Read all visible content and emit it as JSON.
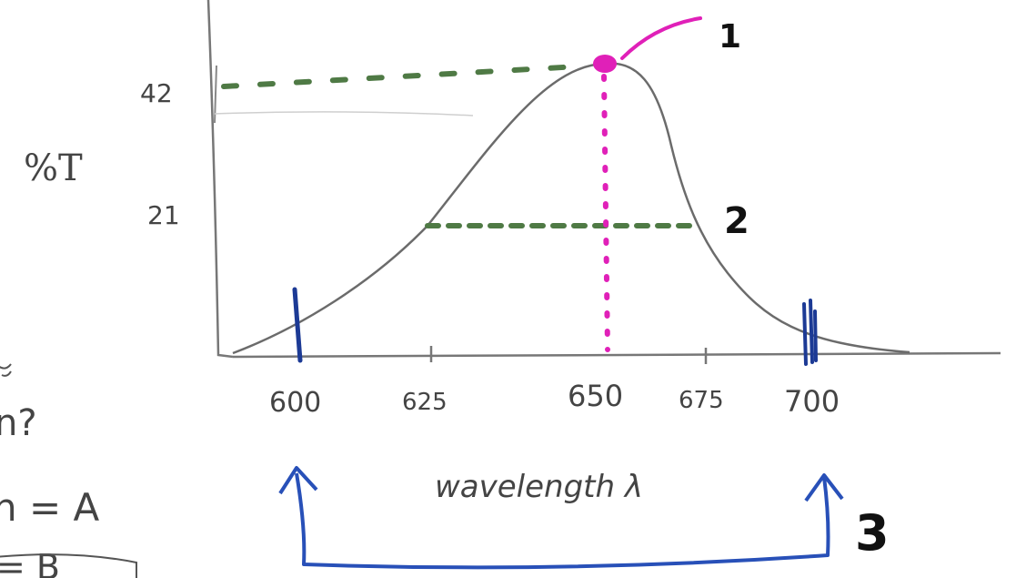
{
  "diagram": {
    "y_axis_label": "%T",
    "x_axis_label": "wavelength λ",
    "y_ticks": [
      "42",
      "21"
    ],
    "x_ticks": [
      "600",
      "625",
      "650",
      "675",
      "700"
    ],
    "annotations": [
      "1",
      "2",
      "3"
    ],
    "margin_fragments": [
      "n?",
      "n = A",
      "= B"
    ]
  },
  "colors": {
    "curve": "#6b6b6b",
    "axes": "#777777",
    "guide_dashes": "#4f7a45",
    "peak_marker": "#e020b8",
    "bandwidth_bracket": "#2850b8",
    "bandwidth_ticks": "#1c3a95",
    "marker_text": "#111111"
  }
}
